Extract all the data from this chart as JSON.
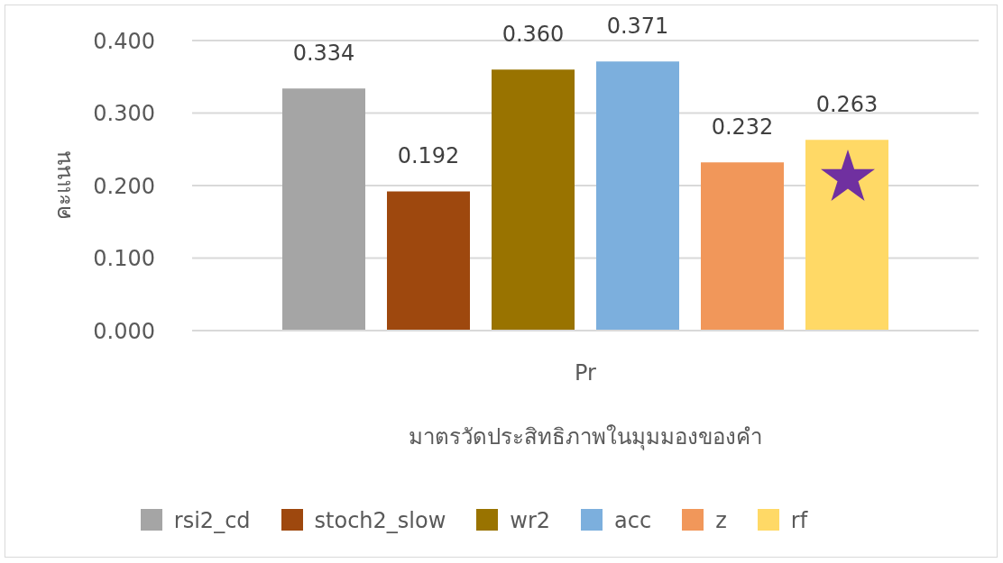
{
  "chart_data": {
    "type": "bar",
    "xlabel": "มาตรวัดประสิทธิภาพในมุมมองของคำ",
    "ylabel": "คะแนน",
    "categories": [
      "Pr"
    ],
    "series": [
      {
        "name": "rsi2_cd",
        "color": "#a5a5a5",
        "values": [
          0.334
        ],
        "value_labels": [
          "0.334"
        ]
      },
      {
        "name": "stoch2_slow",
        "color": "#9e480e",
        "values": [
          0.192
        ],
        "value_labels": [
          "0.192"
        ]
      },
      {
        "name": "wr2",
        "color": "#997300",
        "values": [
          0.36
        ],
        "value_labels": [
          "0.360"
        ]
      },
      {
        "name": "acc",
        "color": "#7cafdd",
        "values": [
          0.371
        ],
        "value_labels": [
          "0.371"
        ]
      },
      {
        "name": "z",
        "color": "#f1975a",
        "values": [
          0.232
        ],
        "value_labels": [
          "0.232"
        ]
      },
      {
        "name": "rf",
        "color": "#ffd966",
        "values": [
          0.263
        ],
        "value_labels": [
          "0.263"
        ]
      }
    ],
    "ylim": [
      0,
      0.4
    ],
    "yticks": [
      {
        "value": 0,
        "label": "0.000"
      },
      {
        "value": 0.1,
        "label": "0.100"
      },
      {
        "value": 0.2,
        "label": "0.200"
      },
      {
        "value": 0.3,
        "label": "0.300"
      },
      {
        "value": 0.4,
        "label": "0.400"
      }
    ],
    "grid": "y",
    "legend": "bottom"
  }
}
